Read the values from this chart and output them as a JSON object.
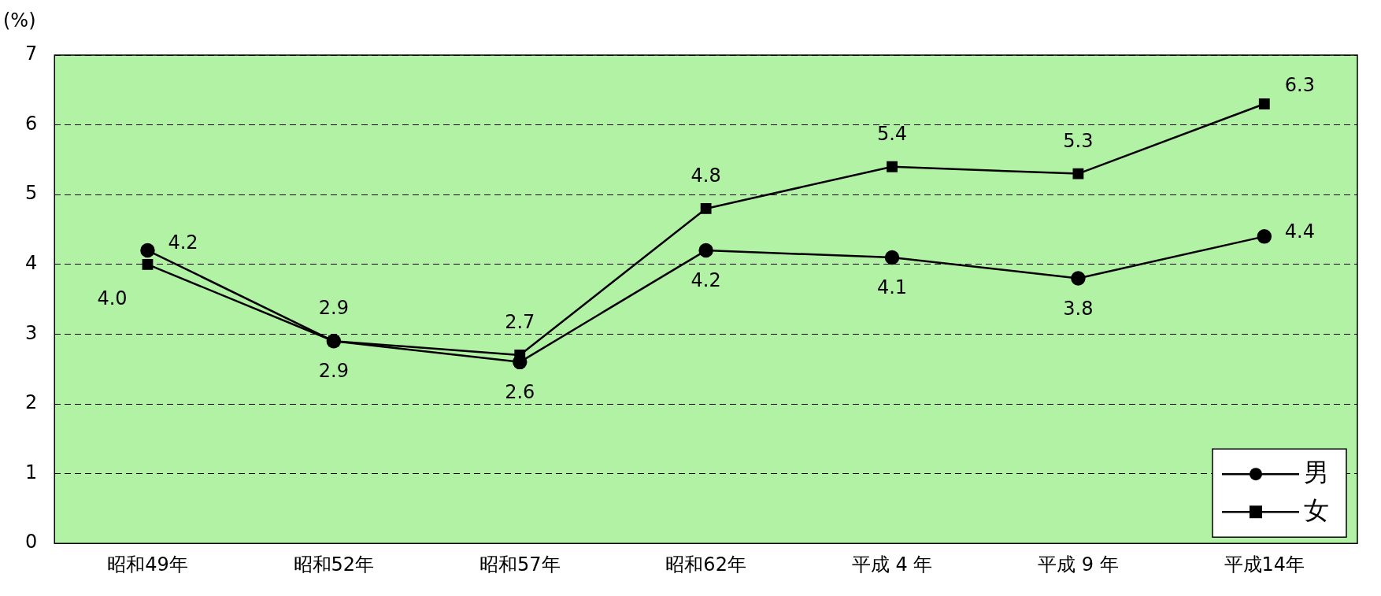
{
  "chart_data": {
    "type": "line",
    "ylabel": "(%)",
    "categories": [
      "昭和49年",
      "昭和52年",
      "昭和57年",
      "昭和62年",
      "平成 4 年",
      "平成 9 年",
      "平成14年"
    ],
    "series": [
      {
        "name": "男",
        "color": "#000000",
        "marker": "circle",
        "values": [
          4.2,
          2.9,
          2.6,
          4.2,
          4.1,
          3.8,
          4.4
        ],
        "value_labels": [
          "4.2",
          "2.9",
          "2.6",
          "4.2",
          "4.1",
          "3.8",
          "4.4"
        ]
      },
      {
        "name": "女",
        "color": "#000000",
        "marker": "square",
        "values": [
          4.0,
          2.9,
          2.7,
          4.8,
          5.4,
          5.3,
          6.3
        ],
        "value_labels": [
          "4.0",
          "2.9",
          "2.7",
          "4.8",
          "5.4",
          "5.3",
          "6.3"
        ]
      }
    ],
    "ylim": [
      0,
      7
    ],
    "yticks": [
      0,
      1,
      2,
      3,
      4,
      5,
      6,
      7
    ],
    "grid": "y",
    "legend": "bottom right",
    "line_style": "solid"
  }
}
